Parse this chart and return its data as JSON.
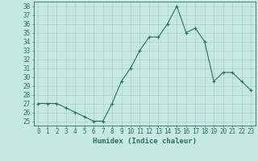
{
  "x": [
    0,
    1,
    2,
    3,
    4,
    5,
    6,
    7,
    8,
    9,
    10,
    11,
    12,
    13,
    14,
    15,
    16,
    17,
    18,
    19,
    20,
    21,
    22,
    23
  ],
  "y": [
    27,
    27,
    27,
    26.5,
    26,
    25.5,
    25,
    25,
    27,
    29.5,
    31,
    33,
    34.5,
    34.5,
    36,
    38,
    35,
    35.5,
    34,
    29.5,
    30.5,
    30.5,
    29.5,
    28.5
  ],
  "xlabel": "Humidex (Indice chaleur)",
  "ylim": [
    24.5,
    38.5
  ],
  "xlim": [
    -0.5,
    23.5
  ],
  "yticks": [
    25,
    26,
    27,
    28,
    29,
    30,
    31,
    32,
    33,
    34,
    35,
    36,
    37,
    38
  ],
  "xticks": [
    0,
    1,
    2,
    3,
    4,
    5,
    6,
    7,
    8,
    9,
    10,
    11,
    12,
    13,
    14,
    15,
    16,
    17,
    18,
    19,
    20,
    21,
    22,
    23
  ],
  "line_color": "#2a7060",
  "bg_color": "#c5e8e3",
  "grid_color": "#a8cec8",
  "tick_color": "#2a7060",
  "xlabel_color": "#2a7060",
  "tick_fontsize": 5.5,
  "xlabel_fontsize": 6.5
}
